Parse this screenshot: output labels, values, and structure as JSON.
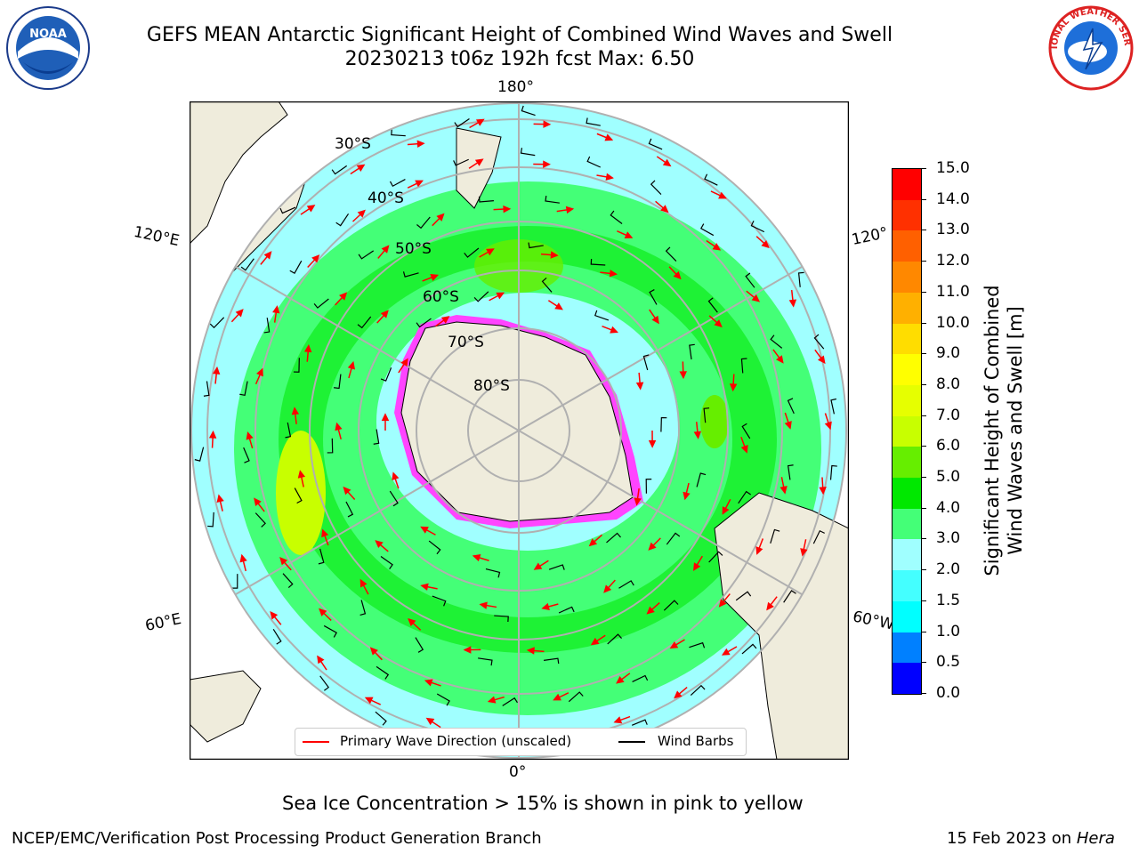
{
  "header": {
    "title_line1": "GEFS MEAN Antarctic Significant Height of Combined Wind Waves and Swell",
    "title_line2": "20230213 t06z 192h fcst   Max: 6.50"
  },
  "logos": {
    "left_text": "NOAA",
    "right_text": "NATIONAL WEATHER SERVICE"
  },
  "map": {
    "longitude_labels": {
      "top": "180°",
      "bottom": "0°",
      "left_upper": "120°E",
      "left_lower": "60°E",
      "right_upper": "120°",
      "right_lower": "60°W"
    },
    "latitude_labels": [
      "30°S",
      "40°S",
      "50°S",
      "60°S",
      "70°S",
      "80°S"
    ],
    "colors": {
      "land": "#efecdc",
      "ocean_low": "#a0ffff",
      "ocean_mid": "#44ff77",
      "ocean_high": "#00e800",
      "peak": "#c8ff00",
      "arrow": "#ff0000",
      "barb": "#000000",
      "sea_ice": "#ff44ff"
    }
  },
  "legend": {
    "primary_wave": "Primary Wave Direction (unscaled)",
    "wind_barbs": "Wind Barbs"
  },
  "colorbar": {
    "title_line1": "Significant Height of Combined",
    "title_line2": "Wind Waves and Swell [m]",
    "ticks": [
      "15.0",
      "14.0",
      "13.0",
      "12.0",
      "11.0",
      "10.0",
      "9.0",
      "8.0",
      "7.0",
      "6.0",
      "5.0",
      "4.0",
      "3.0",
      "2.0",
      "1.5",
      "1.0",
      "0.5",
      "0.0"
    ],
    "colors": [
      "#0000ff",
      "#0080ff",
      "#00ffff",
      "#44ffff",
      "#a0ffff",
      "#44ff77",
      "#00e800",
      "#66ee00",
      "#c8ff00",
      "#e6ff00",
      "#ffff00",
      "#ffdd00",
      "#ffb000",
      "#ff8800",
      "#ff6000",
      "#ff3000",
      "#ff0000"
    ]
  },
  "caption": "Sea Ice Concentration > 15% is shown in pink to yellow",
  "footer": {
    "left": "NCEP/EMC/Verification Post Processing Product Generation Branch",
    "right_date": "15 Feb 2023 on ",
    "right_host": "Hera"
  }
}
